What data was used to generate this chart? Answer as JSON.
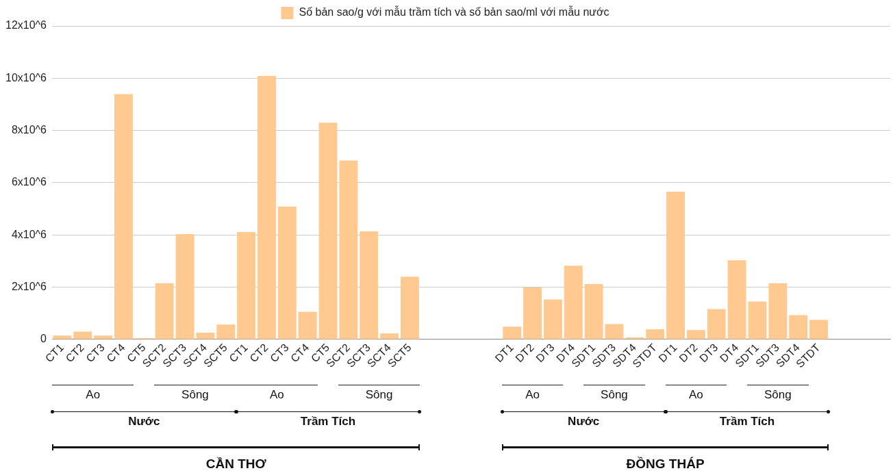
{
  "chart_data": {
    "type": "bar",
    "categories": [
      "CT1",
      "CT2",
      "CT3",
      "CT4",
      "CT5",
      "SCT2",
      "SCT3",
      "SCT4",
      "SCT5",
      "CT1",
      "CT2",
      "CT3",
      "CT4",
      "CT5",
      "SCT2",
      "SCT3",
      "SCT4",
      "SCT5",
      null,
      null,
      null,
      null,
      "DT1",
      "DT2",
      "DT3",
      "DT4",
      "SDT1",
      "SDT3",
      "SDT4",
      "STDT",
      "DT1",
      "DT2",
      "DT3",
      "DT4",
      "SDT1",
      "SDT3",
      "SDT4",
      "STDT",
      null,
      null,
      null
    ],
    "series": [
      {
        "name": "Số bản sao/g với mẫu trầm tích và số bản sao/ml với mẫu nước",
        "color": "#ffc98f",
        "values": [
          150000,
          300000,
          150000,
          9390000,
          50000,
          2150000,
          4030000,
          260000,
          570000,
          4110000,
          10090000,
          5090000,
          1060000,
          8300000,
          6850000,
          4140000,
          230000,
          2400000,
          null,
          null,
          null,
          null,
          490000,
          1990000,
          1530000,
          2820000,
          2120000,
          590000,
          80000,
          390000,
          5660000,
          360000,
          1160000,
          3030000,
          1450000,
          2150000,
          930000,
          750000,
          null,
          null,
          null
        ]
      }
    ],
    "ylim": [
      0,
      12000000
    ],
    "yticks": [
      {
        "value": 0,
        "label": "0"
      },
      {
        "value": 2000000,
        "label": "2x10^6"
      },
      {
        "value": 4000000,
        "label": "4x10^6"
      },
      {
        "value": 6000000,
        "label": "6x10^6"
      },
      {
        "value": 8000000,
        "label": "8x10^6"
      },
      {
        "value": 10000000,
        "label": "10x10^6"
      },
      {
        "value": 12000000,
        "label": "12x10^6"
      }
    ],
    "grid": "y",
    "legend": "top",
    "annotations": [
      "Ao",
      "Sông",
      "Ao",
      "Sông",
      "Nước",
      "Trầm Tích",
      "CẦN THƠ",
      "Ao",
      "Sông",
      "Ao",
      "Sông",
      "Nước",
      "Trầm Tích",
      "ĐỒNG THÁP"
    ]
  }
}
